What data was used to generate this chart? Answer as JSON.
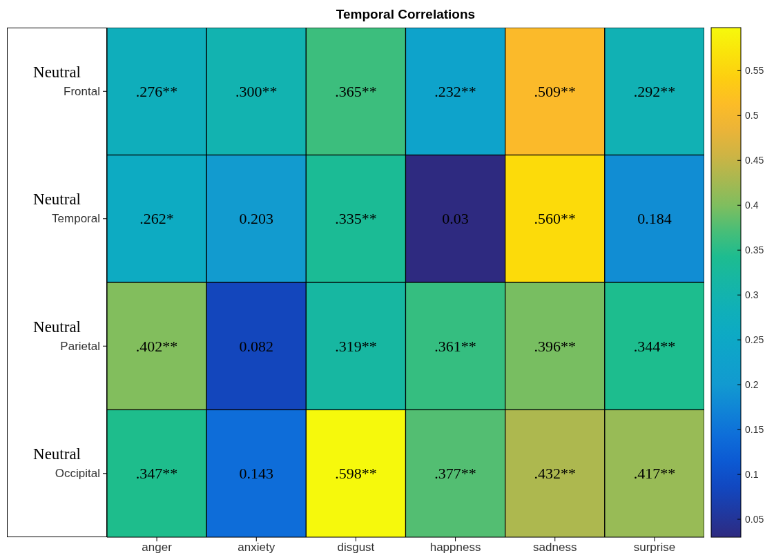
{
  "chart_data": {
    "type": "heatmap",
    "title": "Temporal Correlations",
    "categories": [
      "anger",
      "anxiety",
      "disgust",
      "happness",
      "sadness",
      "surprise"
    ],
    "y_categories": [
      "Frontal",
      "Temporal",
      "Parietal",
      "Occipital"
    ],
    "annotations": [
      "Neutral",
      "Neutral",
      "Neutral",
      "Neutral"
    ],
    "cells": [
      [
        0.276,
        0.3,
        0.365,
        0.232,
        0.509,
        0.292
      ],
      [
        0.262,
        0.203,
        0.335,
        0.03,
        0.56,
        0.184
      ],
      [
        0.402,
        0.082,
        0.319,
        0.361,
        0.396,
        0.344
      ],
      [
        0.347,
        0.143,
        0.598,
        0.377,
        0.432,
        0.417
      ]
    ],
    "cell_labels": [
      [
        ".276**",
        ".300**",
        ".365**",
        ".232**",
        ".509**",
        ".292**"
      ],
      [
        ".262*",
        "0.203",
        ".335**",
        "0.03",
        ".560**",
        "0.184"
      ],
      [
        ".402**",
        "0.082",
        ".319**",
        ".361**",
        ".396**",
        ".344**"
      ],
      [
        ".347**",
        "0.143",
        ".598**",
        ".377**",
        ".432**",
        ".417**"
      ]
    ],
    "clim": [
      0.03,
      0.598
    ],
    "cticks": [
      0.05,
      0.1,
      0.15,
      0.2,
      0.25,
      0.3,
      0.35,
      0.4,
      0.45,
      0.5,
      0.55
    ]
  }
}
